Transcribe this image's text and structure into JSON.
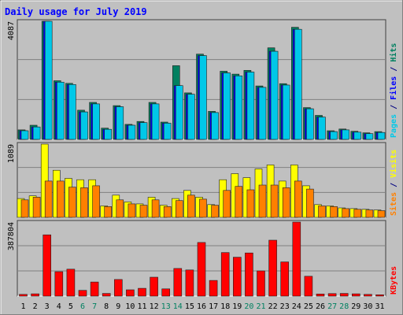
{
  "chart_data": {
    "type": "bar",
    "title": "Daily usage for July 2019",
    "categories": [
      "1",
      "2",
      "3",
      "4",
      "5",
      "6",
      "7",
      "8",
      "9",
      "10",
      "11",
      "12",
      "13",
      "14",
      "15",
      "16",
      "17",
      "18",
      "19",
      "20",
      "21",
      "22",
      "23",
      "24",
      "25",
      "26",
      "27",
      "28",
      "29",
      "30",
      "31"
    ],
    "weekend_days": [
      "6",
      "7",
      "13",
      "14",
      "20",
      "21",
      "27",
      "28"
    ],
    "panels": [
      {
        "name": "top",
        "ymax_label": "4087",
        "ymax": 4087,
        "right_label": [
          {
            "text": "Pages",
            "color": "#00c8e8"
          },
          {
            "text": " / ",
            "color": "#000080"
          },
          {
            "text": "Files",
            "color": "#0000ff"
          },
          {
            "text": " / ",
            "color": "#000080"
          },
          {
            "text": "Hits",
            "color": "#008060"
          }
        ],
        "series": [
          {
            "color": "#008060",
            "values": [
              330,
              490,
              4087,
              2030,
              1940,
              1010,
              1280,
              390,
              1170,
              520,
              620,
              1280,
              600,
              2550,
              1610,
              2950,
              970,
              2360,
              2260,
              2390,
              1850,
              3170,
              1930,
              3880,
              1100,
              830,
              300,
              360,
              280,
              230,
              270
            ]
          },
          {
            "color": "#0000ff",
            "values": [
              300,
              430,
              4087,
              1980,
              1900,
              950,
              1230,
              350,
              1130,
              490,
              580,
              1230,
              560,
              1860,
              1560,
              2900,
              930,
              2300,
              2200,
              2330,
              1800,
              3050,
              1880,
              3810,
              1060,
              770,
              270,
              330,
              250,
              200,
              240
            ]
          },
          {
            "color": "#00c8e8",
            "values": [
              300,
              430,
              4087,
              1980,
              1900,
              950,
              1230,
              350,
              1130,
              490,
              580,
              1230,
              560,
              1860,
              1560,
              2900,
              930,
              2300,
              2200,
              2330,
              1800,
              3050,
              1880,
              3810,
              1060,
              770,
              270,
              330,
              250,
              200,
              240
            ]
          }
        ]
      },
      {
        "name": "middle",
        "ymax_label": "1089",
        "ymax": 1089,
        "right_label": [
          {
            "text": "Sites",
            "color": "#ff8000"
          },
          {
            "text": " / ",
            "color": "#000080"
          },
          {
            "text": "Visits",
            "color": "#ffff00"
          }
        ],
        "series": [
          {
            "color": "#ffff00",
            "values": [
              280,
              320,
              1089,
              700,
              580,
              560,
              560,
              170,
              330,
              230,
              200,
              300,
              180,
              280,
              400,
              300,
              190,
              560,
              650,
              590,
              720,
              780,
              540,
              780,
              470,
              190,
              170,
              140,
              130,
              120,
              110
            ]
          },
          {
            "color": "#ff8000",
            "values": [
              260,
              300,
              540,
              540,
              450,
              440,
              470,
              160,
              260,
              200,
              180,
              260,
              160,
              250,
              330,
              270,
              180,
              400,
              460,
              410,
              480,
              480,
              440,
              540,
              420,
              170,
              160,
              130,
              120,
              110,
              100
            ]
          }
        ]
      },
      {
        "name": "bottom",
        "ymax_label": "387804",
        "ymax": 387804,
        "right_label": [
          {
            "text": "KBytes",
            "color": "#ff0000"
          }
        ],
        "series": [
          {
            "color": "#ff0000",
            "values": [
              9000,
              12000,
              321000,
              128000,
              141000,
              30000,
              74000,
              14000,
              87000,
              33000,
              41000,
              99000,
              38000,
              145000,
              137000,
              281000,
              82000,
              228000,
              204000,
              226000,
              132000,
              293000,
              179000,
              387804,
              104000,
              11000,
              13000,
              14000,
              12000,
              9000,
              7000
            ]
          }
        ]
      }
    ]
  }
}
